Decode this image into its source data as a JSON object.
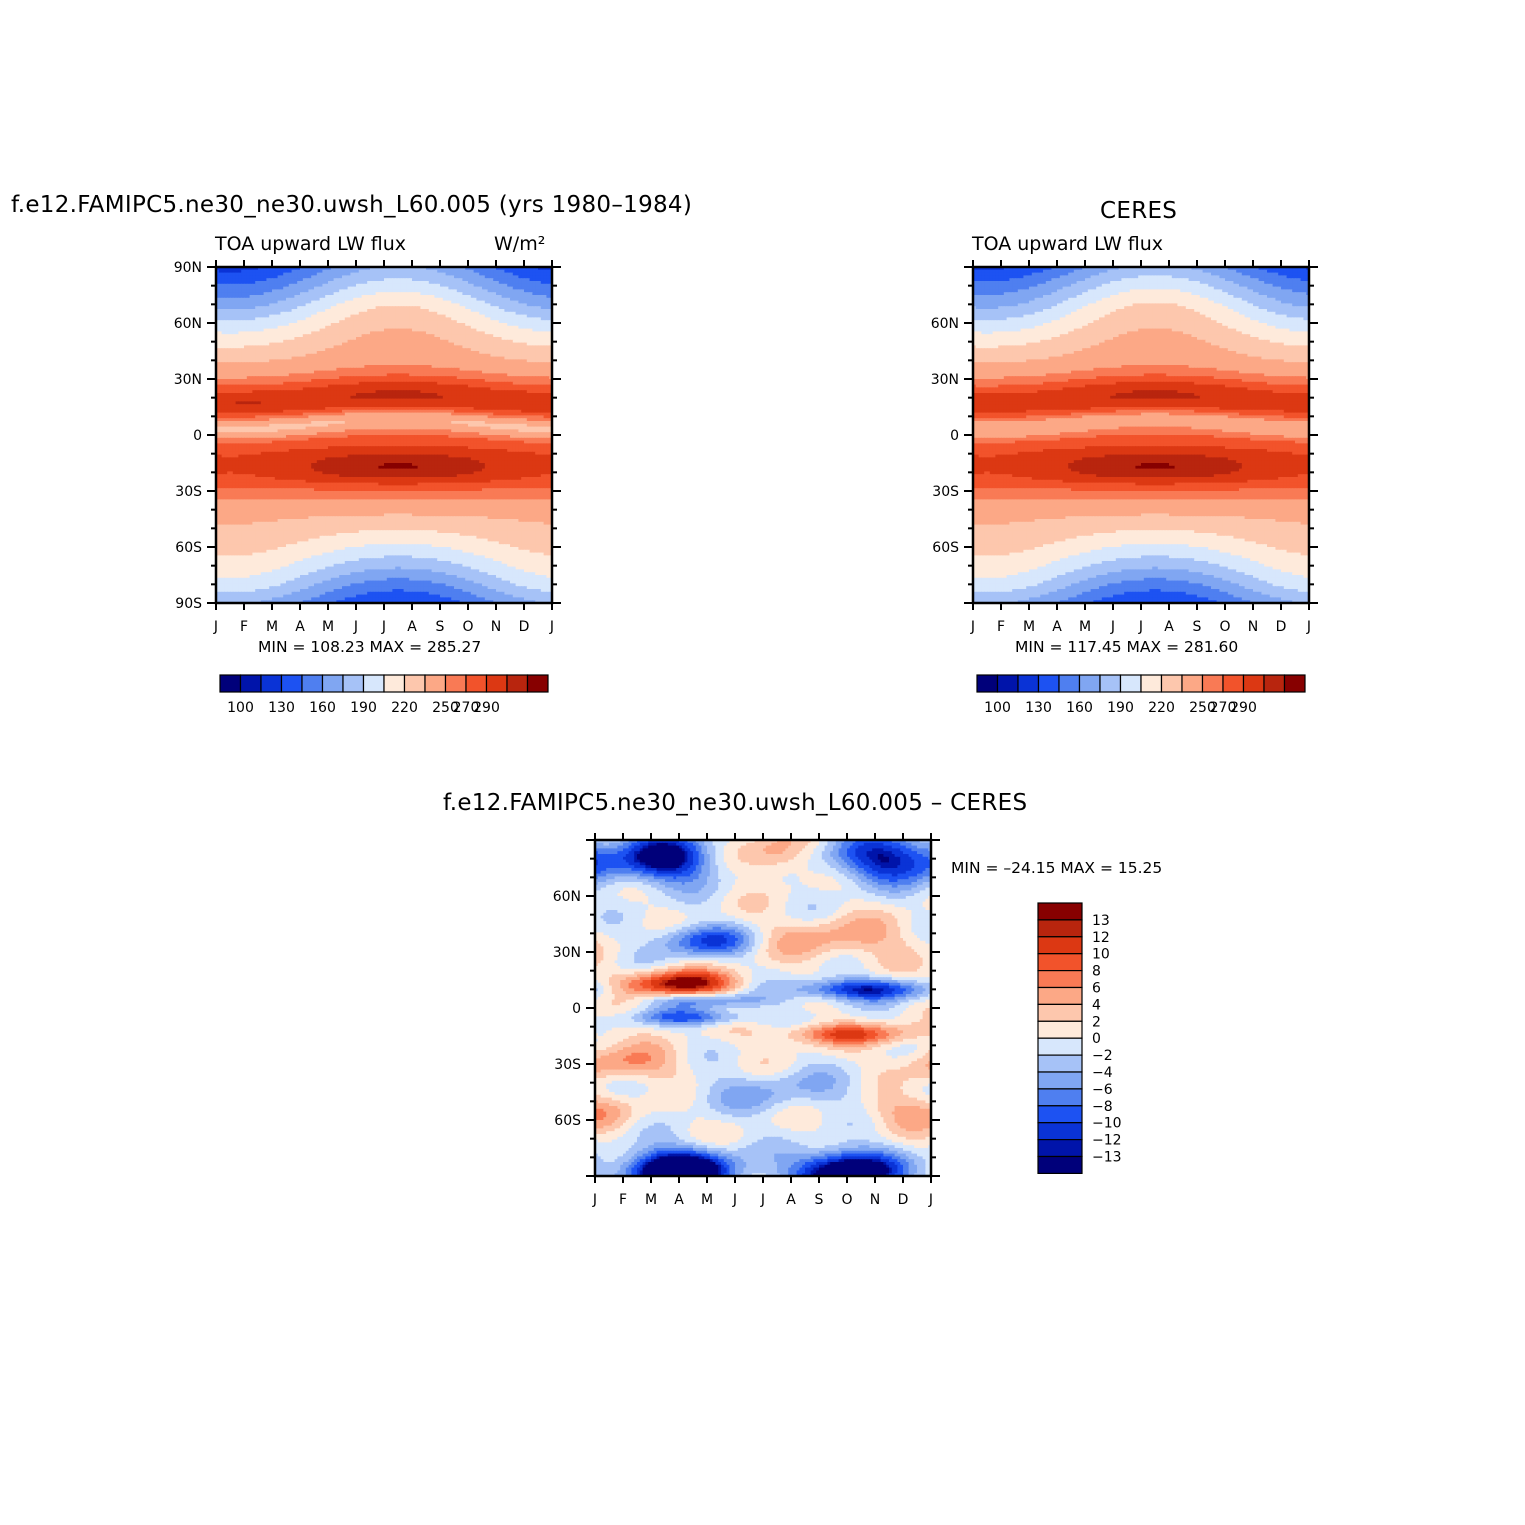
{
  "colors": {
    "palette": [
      "#00007a",
      "#0014aa",
      "#0a33d6",
      "#1d52f2",
      "#4f7ff0",
      "#80a6f2",
      "#a6c2f7",
      "#d7e7fc",
      "#feeadb",
      "#fdc7ad",
      "#fca886",
      "#f97a55",
      "#f2532b",
      "#dc3813",
      "#b8250e",
      "#870000"
    ],
    "diff_palette": [
      "#00007a",
      "#0014aa",
      "#0a33d6",
      "#1d52f2",
      "#4f7ff0",
      "#80a6f2",
      "#a6c2f7",
      "#d7e7fc",
      "#feeadb",
      "#fdc7ad",
      "#fca886",
      "#f97a55",
      "#f2532b",
      "#dc3813",
      "#b8250e",
      "#870000"
    ]
  },
  "panels": {
    "model": {
      "title": "f.e12.FAMIPC5.ne30_ne30.uwsh_L60.005 (yrs 1980–1984)",
      "left_label": "TOA upward LW flux",
      "right_label": "W/m²",
      "stats": "MIN = 108.23 MAX = 285.27"
    },
    "obs": {
      "title": "CERES",
      "left_label": "TOA upward LW flux",
      "stats": "MIN = 117.45 MAX = 281.60"
    },
    "diff": {
      "title": "f.e12.FAMIPC5.ne30_ne30.uwsh_L60.005 – CERES",
      "stats": "MIN = –24.15 MAX =   15.25"
    }
  },
  "chart_data": [
    {
      "type": "heatmap",
      "title": "f.e12.FAMIPC5.ne30_ne30.uwsh_L60.005 (yrs 1980–1984)",
      "variable": "TOA upward LW flux",
      "units": "W/m²",
      "x": [
        "J",
        "F",
        "M",
        "A",
        "M",
        "J",
        "J",
        "A",
        "S",
        "O",
        "N",
        "D",
        "J"
      ],
      "yticks": [
        "90N",
        "60N",
        "30N",
        "0",
        "30S",
        "60S",
        "90S"
      ],
      "ylim": [
        -90,
        90
      ],
      "colorbar_labels": [
        "100",
        "130",
        "160",
        "190",
        "220",
        "250",
        "270",
        "290"
      ],
      "levels": [
        100,
        115,
        130,
        145,
        160,
        175,
        190,
        205,
        220,
        235,
        250,
        260,
        270,
        280,
        290
      ],
      "min": 108.23,
      "max": 285.27
    },
    {
      "type": "heatmap",
      "title": "CERES",
      "variable": "TOA upward LW flux",
      "x": [
        "J",
        "F",
        "M",
        "A",
        "M",
        "J",
        "J",
        "A",
        "S",
        "O",
        "N",
        "D",
        "J"
      ],
      "yticks": [
        "60N",
        "30N",
        "0",
        "30S",
        "60S"
      ],
      "ylim": [
        -90,
        90
      ],
      "colorbar_labels": [
        "100",
        "130",
        "160",
        "190",
        "220",
        "250",
        "270",
        "290"
      ],
      "levels": [
        100,
        115,
        130,
        145,
        160,
        175,
        190,
        205,
        220,
        235,
        250,
        260,
        270,
        280,
        290
      ],
      "min": 117.45,
      "max": 281.6
    },
    {
      "type": "heatmap",
      "title": "f.e12.FAMIPC5.ne30_ne30.uwsh_L60.005 – CERES",
      "x": [
        "J",
        "F",
        "M",
        "A",
        "M",
        "J",
        "J",
        "A",
        "S",
        "O",
        "N",
        "D",
        "J"
      ],
      "yticks": [
        "60N",
        "30N",
        "0",
        "30S",
        "60S"
      ],
      "ylim": [
        -90,
        90
      ],
      "colorbar_labels": [
        "13",
        "12",
        "10",
        "8",
        "6",
        "4",
        "2",
        "0",
        "−2",
        "−4",
        "−6",
        "−8",
        "−10",
        "−12",
        "−13"
      ],
      "levels": [
        -13,
        -12,
        -10,
        -8,
        -6,
        -4,
        -2,
        0,
        2,
        4,
        6,
        8,
        10,
        12,
        13
      ],
      "min": -24.15,
      "max": 15.25
    }
  ]
}
